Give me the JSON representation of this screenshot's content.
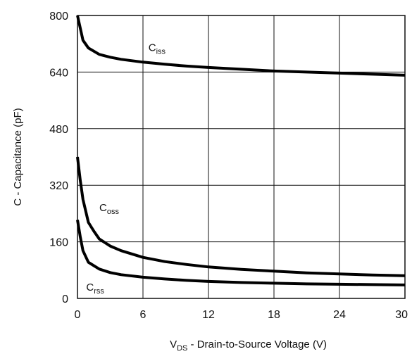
{
  "chart_data": {
    "type": "line",
    "xlabel": {
      "main": "V",
      "sub": "DS",
      "rest": " - Drain-to-Source Voltage (V)"
    },
    "ylabel": "C - Capacitance (pF)",
    "xlim": [
      0,
      30
    ],
    "ylim": [
      0,
      800
    ],
    "xticks": [
      0,
      6,
      12,
      18,
      24,
      30
    ],
    "yticks": [
      0,
      160,
      320,
      480,
      640,
      800
    ],
    "grid": true,
    "series": [
      {
        "name": {
          "main": "C",
          "sub": "iss"
        },
        "label_at": [
          6.5,
          700
        ],
        "x": [
          0,
          0.5,
          1,
          2,
          3,
          4,
          6,
          8,
          10,
          12,
          15,
          18,
          21,
          24,
          27,
          30
        ],
        "y": [
          800,
          730,
          708,
          690,
          682,
          676,
          668,
          662,
          657,
          653,
          648,
          643,
          640,
          637,
          634,
          631
        ]
      },
      {
        "name": {
          "main": "C",
          "sub": "oss"
        },
        "label_at": [
          2.0,
          247
        ],
        "x": [
          0,
          0.25,
          0.5,
          1,
          1.5,
          2,
          3,
          4,
          6,
          8,
          10,
          12,
          15,
          18,
          21,
          24,
          27,
          30
        ],
        "y": [
          400,
          335,
          280,
          215,
          190,
          168,
          148,
          135,
          116,
          104,
          96,
          89,
          82,
          77,
          72,
          69,
          66,
          64
        ]
      },
      {
        "name": {
          "main": "C",
          "sub": "rss"
        },
        "label_at": [
          0.8,
          22
        ],
        "x": [
          0,
          0.25,
          0.5,
          1,
          2,
          3,
          4,
          6,
          8,
          10,
          12,
          15,
          18,
          21,
          24,
          27,
          30
        ],
        "y": [
          222,
          175,
          135,
          102,
          83,
          73,
          67,
          60,
          55,
          51,
          48,
          45,
          43,
          41,
          40,
          39,
          38
        ]
      }
    ]
  }
}
